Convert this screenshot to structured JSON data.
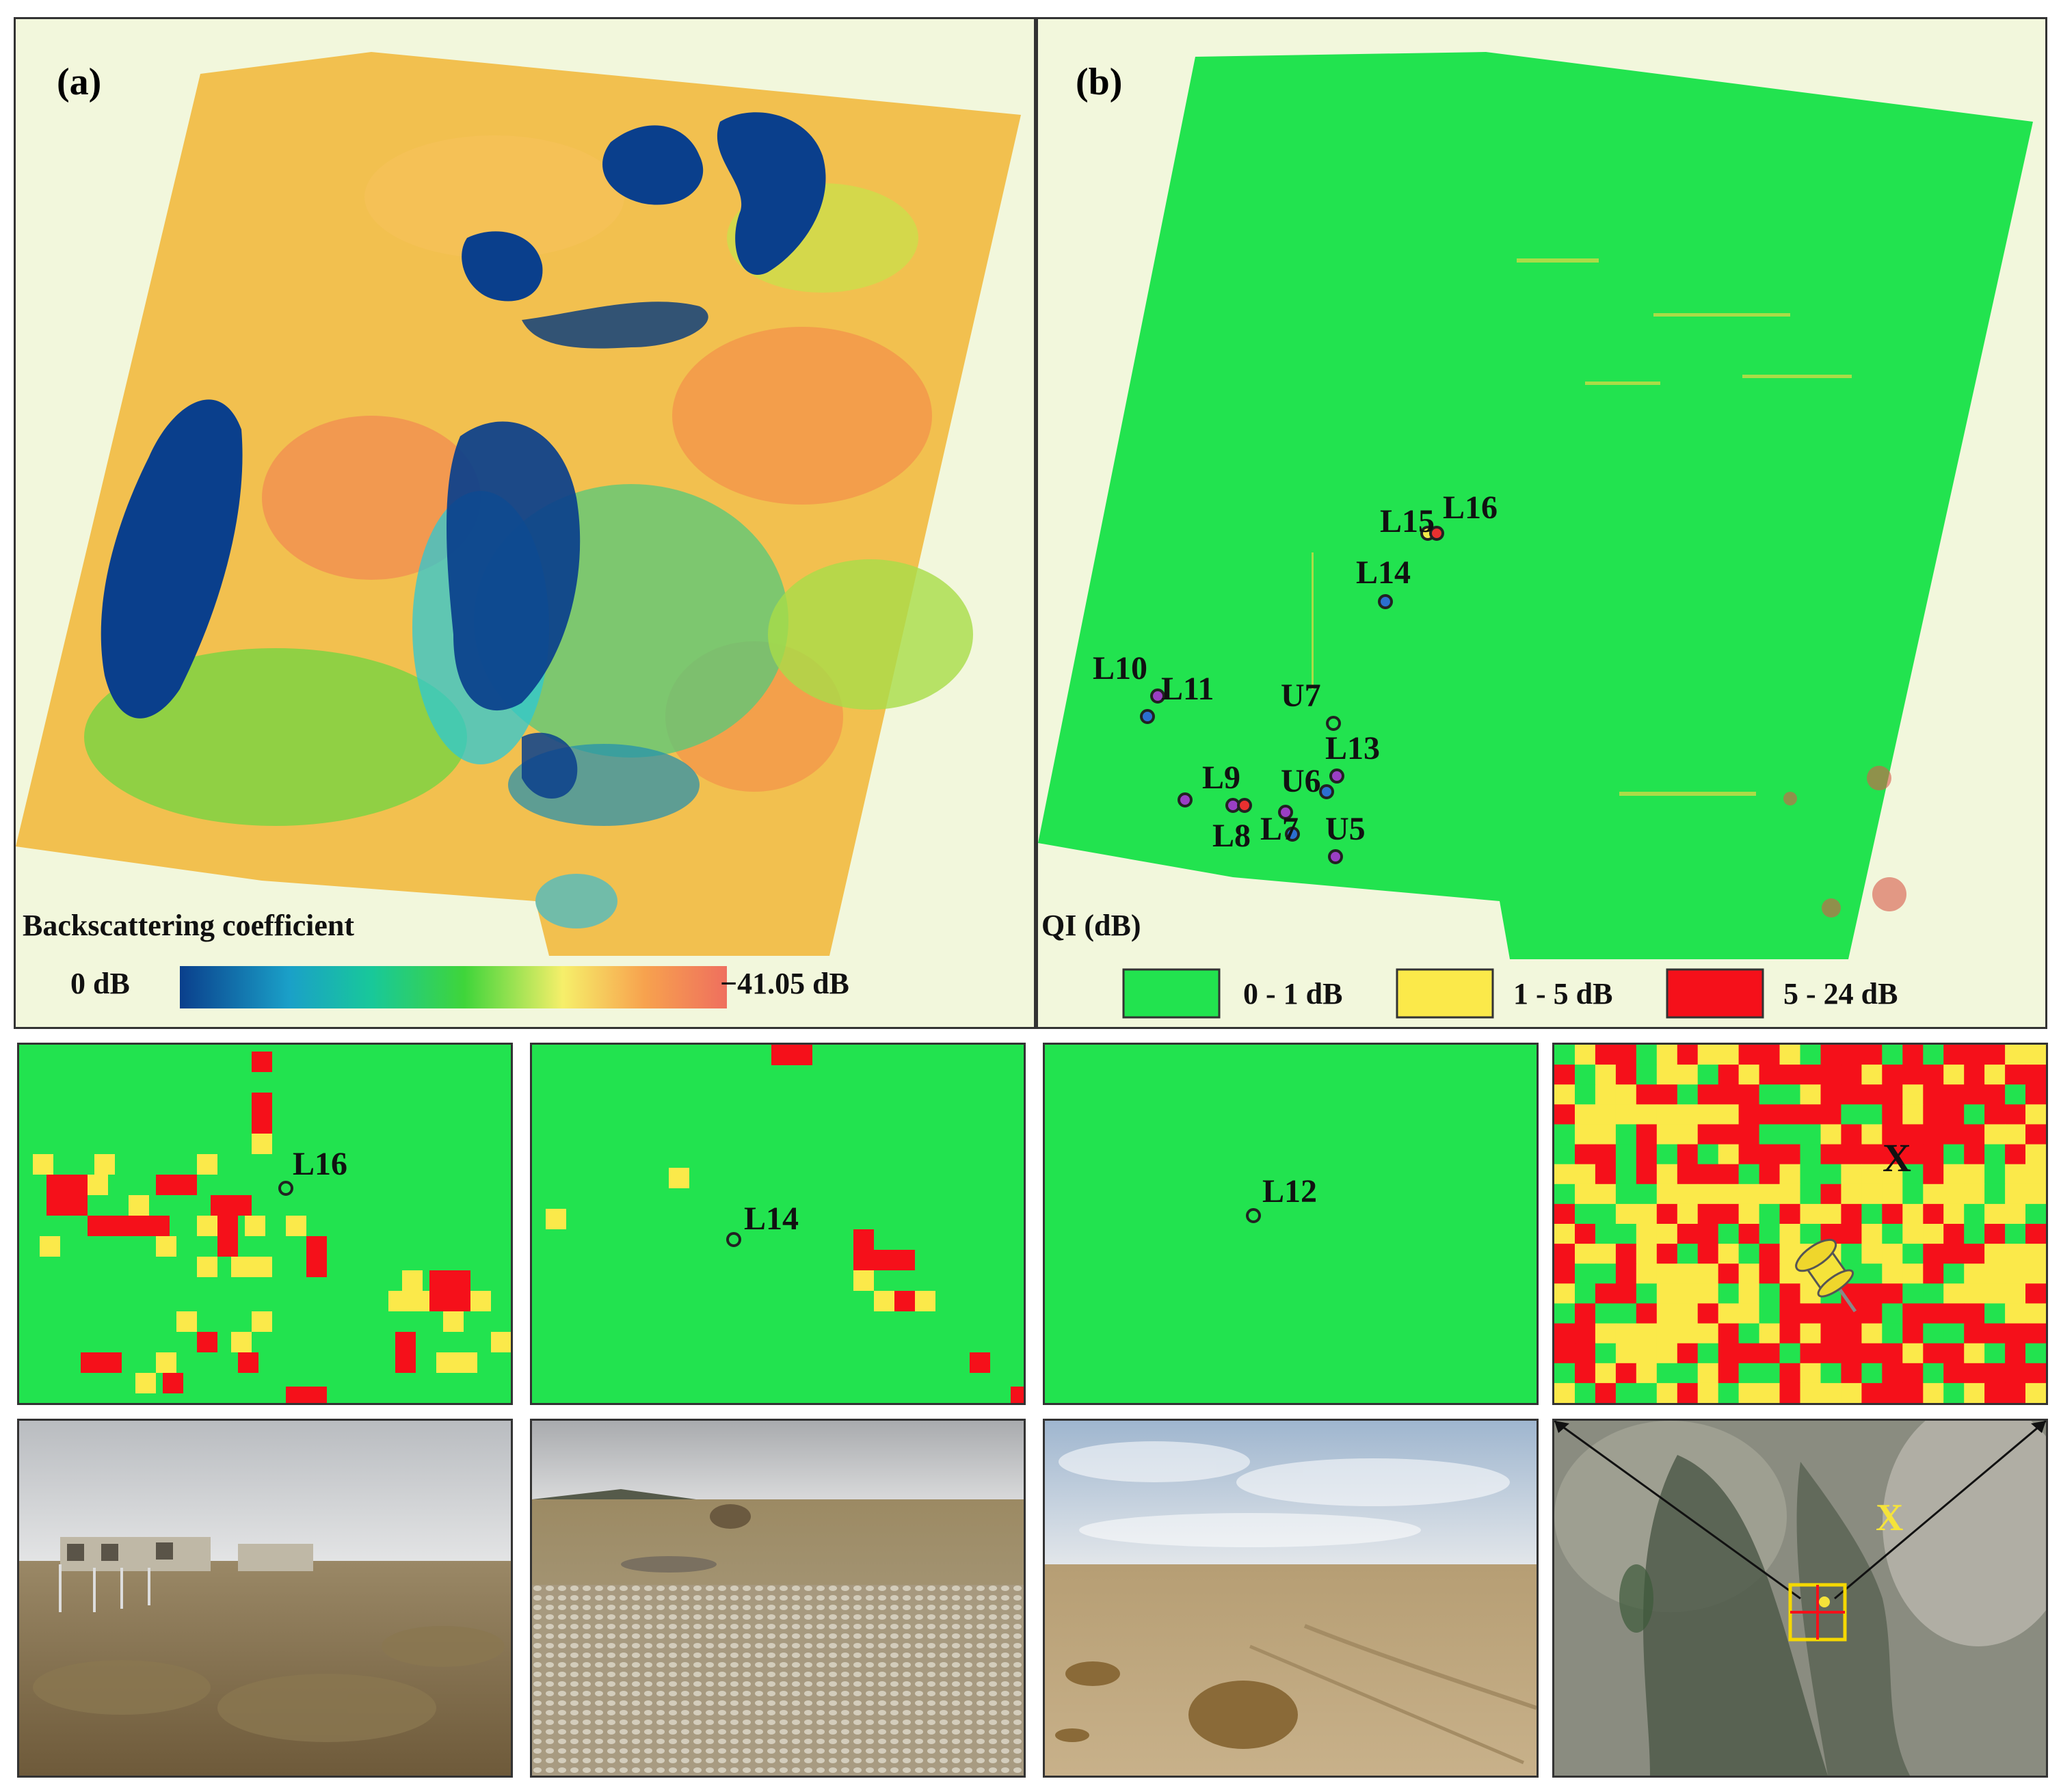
{
  "panel_a": {
    "label": "(a)",
    "legend_title": "Backscattering coefficient",
    "legend_min": "0 dB",
    "legend_max": "−41.05 dB"
  },
  "panel_b": {
    "label": "(b)",
    "legend_title": "QI (dB)",
    "classes": [
      {
        "label": "0 - 1 dB",
        "color": "#22e34f"
      },
      {
        "label": "1 - 5 dB",
        "color": "#fbe94a"
      },
      {
        "label": "5 - 24 dB",
        "color": "#f5101a"
      }
    ],
    "sites": [
      "L16",
      "L15",
      "L14",
      "L10",
      "L11",
      "U7",
      "L13",
      "L9",
      "U6",
      "L8",
      "L7",
      "U5"
    ]
  },
  "zooms": {
    "z1_label": "L16",
    "z2_label": "L14",
    "z3_label": "L12",
    "z4_label": "X"
  },
  "photos": {
    "satellite_label": "X"
  },
  "colors": {
    "green": "#22e34f",
    "yellow": "#fbe94a",
    "red": "#f5101a",
    "water": "#0a3f8c",
    "panel_bg": "#f2f7dc"
  },
  "icons": [
    "pushpin-icon"
  ]
}
